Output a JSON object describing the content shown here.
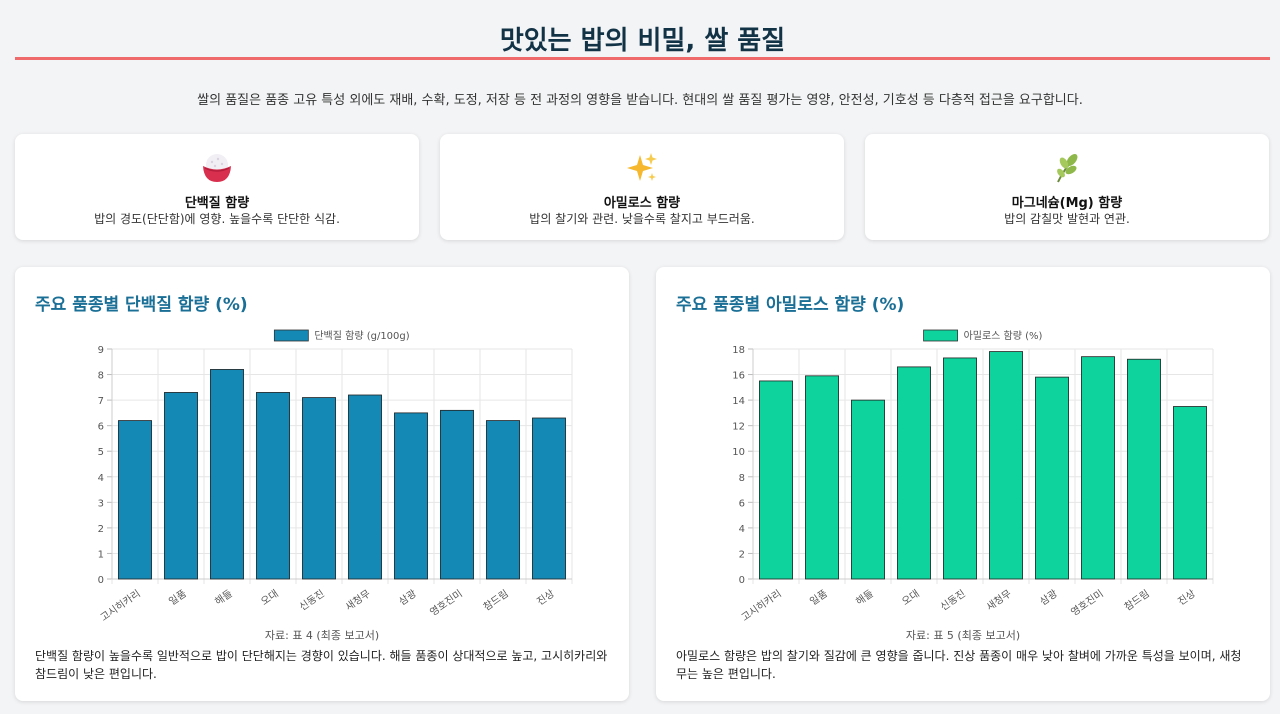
{
  "page": {
    "title": "맛있는 밥의 비밀, 쌀 품질",
    "intro": "쌀의 품질은 품종 고유 특성 외에도 재배, 수확, 도정, 저장 등 전 과정의 영향을 받습니다. 현대의 쌀 품질 평가는 영양, 안전성, 기호성 등 다층적 접근을 요구합니다."
  },
  "features": [
    {
      "icon": "rice-bowl-icon",
      "title": "단백질 함량",
      "desc": "밥의 경도(단단함)에 영향. 높을수록 단단한 식감."
    },
    {
      "icon": "sparkles-icon",
      "title": "아밀로스 함량",
      "desc": "밥의 찰기와 관련. 낮을수록 찰지고 부드러움."
    },
    {
      "icon": "herb-icon",
      "title": "마그네슘(Mg) 함량",
      "desc": "밥의 감칠맛 발현과 연관."
    }
  ],
  "cards": [
    {
      "title": "주요 품종별 단백질 함량 (%)",
      "source": "자료: 표 4 (최종 보고서)",
      "note": "단백질 함량이 높을수록 일반적으로 밥이 단단해지는 경향이 있습니다. 해들 품종이 상대적으로 높고, 고시히카리와 참드림이 낮은 편입니다."
    },
    {
      "title": "주요 품종별 아밀로스 함량 (%)",
      "source": "자료: 표 5 (최종 보고서)",
      "note": "아밀로스 함량은 밥의 찰기와 질감에 큰 영향을 줍니다. 진상 품종이 매우 낮아 찰벼에 가까운 특성을 보이며, 새청무는 높은 편입니다."
    }
  ],
  "chart_data": [
    {
      "type": "bar",
      "categories": [
        "고시히카리",
        "일품",
        "해들",
        "오대",
        "신동진",
        "새청무",
        "삼광",
        "영호진미",
        "참드림",
        "진상"
      ],
      "series": [
        {
          "name": "단백질 함량 (g/100g)",
          "values": [
            6.2,
            7.3,
            8.2,
            7.3,
            7.1,
            7.2,
            6.5,
            6.6,
            6.2,
            6.3
          ]
        }
      ],
      "ylim": [
        0,
        9
      ],
      "yticks": [
        0,
        1,
        2,
        3,
        4,
        5,
        6,
        7,
        8,
        9
      ],
      "color": "#1589b5",
      "legend": "top"
    },
    {
      "type": "bar",
      "categories": [
        "고시히카리",
        "일품",
        "해들",
        "오대",
        "신동진",
        "새청무",
        "삼광",
        "영호진미",
        "참드림",
        "진상"
      ],
      "series": [
        {
          "name": "아밀로스 함량 (%)",
          "values": [
            15.5,
            15.9,
            14.0,
            16.6,
            17.3,
            17.8,
            15.8,
            17.4,
            17.2,
            13.5
          ]
        }
      ],
      "ylim": [
        0,
        18
      ],
      "yticks": [
        0,
        2,
        4,
        6,
        8,
        10,
        12,
        14,
        16,
        18
      ],
      "color": "#0ed39c",
      "legend": "top"
    }
  ]
}
